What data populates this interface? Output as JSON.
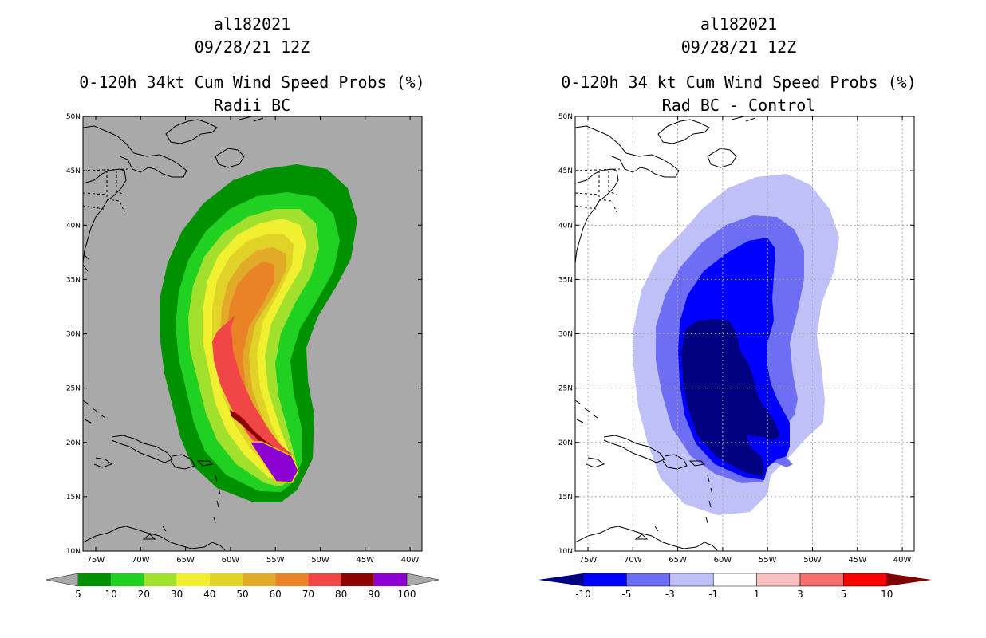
{
  "left": {
    "storm_id": "al182021",
    "date": "09/28/21 12Z",
    "title": "0-120h 34kt Cum Wind Speed Probs (%)",
    "subtitle": "Radii BC",
    "background": "#a9a9a9",
    "x_ticks": [
      "75W",
      "70W",
      "65W",
      "60W",
      "55W",
      "50W",
      "45W",
      "40W"
    ],
    "y_ticks": [
      "50N",
      "45N",
      "40N",
      "35N",
      "30N",
      "25N",
      "20N",
      "15N",
      "10N"
    ],
    "colorbar": {
      "labels": [
        "5",
        "10",
        "20",
        "30",
        "40",
        "50",
        "60",
        "70",
        "80",
        "90",
        "100"
      ],
      "colors": [
        "#009100",
        "#21d121",
        "#a1e02d",
        "#f0f030",
        "#e1d228",
        "#e1aa28",
        "#ea8226",
        "#f04646",
        "#8c0000",
        "#8c00d2"
      ],
      "arrow_color": "#a9a9a9"
    }
  },
  "right": {
    "storm_id": "al182021",
    "date": "09/28/21 12Z",
    "title": "0-120h 34 kt Cum Wind Speed Probs (%)",
    "subtitle": "Rad BC - Control",
    "background": "#ffffff",
    "x_ticks": [
      "75W",
      "70W",
      "65W",
      "60W",
      "55W",
      "50W",
      "45W",
      "40W"
    ],
    "y_ticks": [
      "50N",
      "45N",
      "40N",
      "35N",
      "30N",
      "25N",
      "20N",
      "15N",
      "10N"
    ],
    "colorbar": {
      "labels": [
        "-10",
        "-5",
        "-3",
        "-1",
        "1",
        "3",
        "5",
        "10"
      ],
      "colors": [
        "#0000ff",
        "#6e6ef5",
        "#c0c0f8",
        "#ffffff",
        "#f8c0c0",
        "#f56e6e",
        "#ff0000"
      ],
      "left_arrow_color": "#000080",
      "right_arrow_color": "#800000"
    }
  }
}
